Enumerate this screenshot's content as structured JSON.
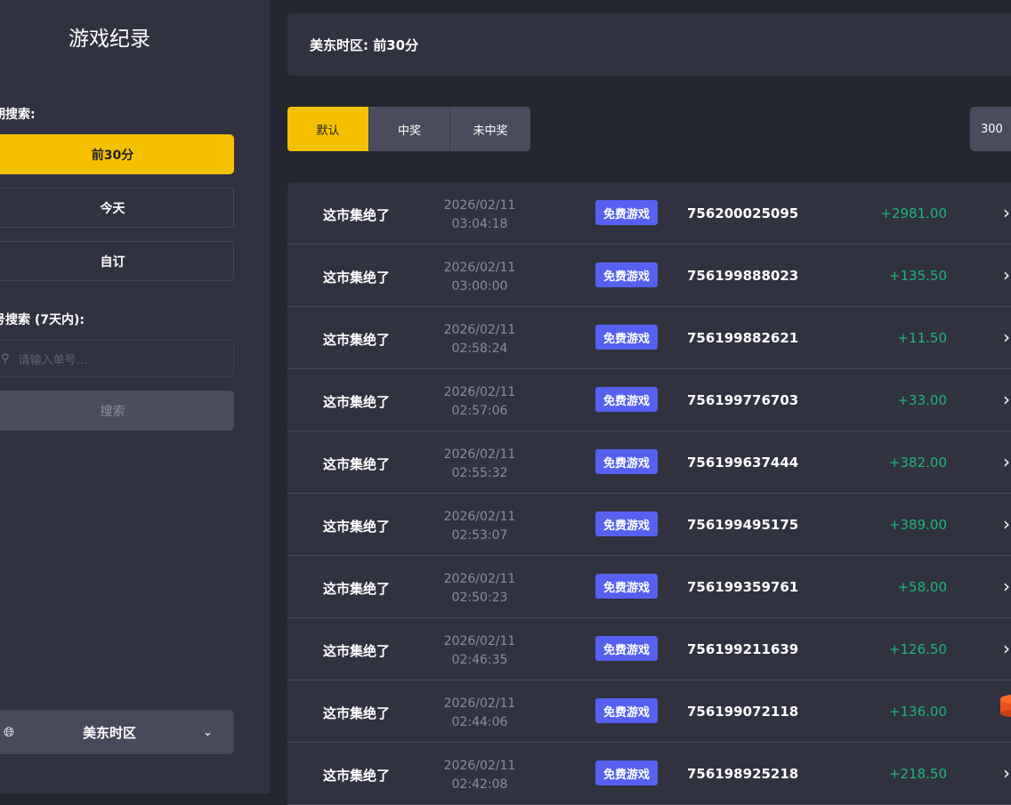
{
  "sidebar": {
    "title": "游戏纪录",
    "date_label": "期搜索:",
    "date_buttons": [
      "前30分",
      "今天",
      "自订"
    ],
    "order_label": "号搜索 (7天内):",
    "search_placeholder": "请输入单号...",
    "search_button": "搜索",
    "timezone": "美东时区"
  },
  "header": {
    "text": "美东时区: 前30分"
  },
  "tabs": [
    "默认",
    "中奖",
    "未中奖"
  ],
  "page_size": "300",
  "colors": {
    "accent": "#f5c000",
    "badge": "#5560f0",
    "win": "#1db57a"
  },
  "rows": [
    {
      "game": "这市集绝了",
      "date": "2026/02/11",
      "time": "03:04:18",
      "badge": "免费游戏",
      "order": "756200025095",
      "amount": "+2981.00"
    },
    {
      "game": "这市集绝了",
      "date": "2026/02/11",
      "time": "03:00:00",
      "badge": "免费游戏",
      "order": "756199888023",
      "amount": "+135.50"
    },
    {
      "game": "这市集绝了",
      "date": "2026/02/11",
      "time": "02:58:24",
      "badge": "免费游戏",
      "order": "756199882621",
      "amount": "+11.50"
    },
    {
      "game": "这市集绝了",
      "date": "2026/02/11",
      "time": "02:57:06",
      "badge": "免费游戏",
      "order": "756199776703",
      "amount": "+33.00"
    },
    {
      "game": "这市集绝了",
      "date": "2026/02/11",
      "time": "02:55:32",
      "badge": "免费游戏",
      "order": "756199637444",
      "amount": "+382.00"
    },
    {
      "game": "这市集绝了",
      "date": "2026/02/11",
      "time": "02:53:07",
      "badge": "免费游戏",
      "order": "756199495175",
      "amount": "+389.00"
    },
    {
      "game": "这市集绝了",
      "date": "2026/02/11",
      "time": "02:50:23",
      "badge": "免费游戏",
      "order": "756199359761",
      "amount": "+58.00"
    },
    {
      "game": "这市集绝了",
      "date": "2026/02/11",
      "time": "02:46:35",
      "badge": "免费游戏",
      "order": "756199211639",
      "amount": "+126.50"
    },
    {
      "game": "这市集绝了",
      "date": "2026/02/11",
      "time": "02:44:06",
      "badge": "免费游戏",
      "order": "756199072118",
      "amount": "+136.00"
    },
    {
      "game": "这市集绝了",
      "date": "2026/02/11",
      "time": "02:42:08",
      "badge": "免费游戏",
      "order": "756198925218",
      "amount": "+218.50"
    }
  ]
}
